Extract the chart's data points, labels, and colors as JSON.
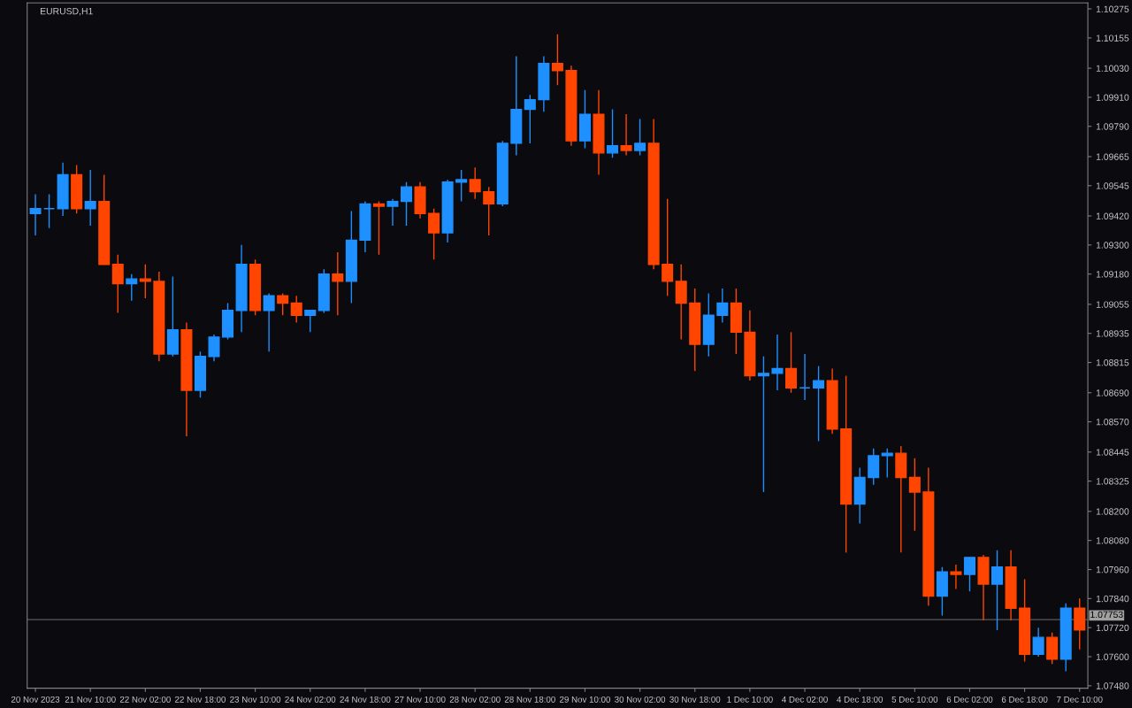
{
  "chart_data": {
    "type": "candlestick",
    "title": "EURUSD,H1",
    "categories": [
      "20 Nov 2023",
      null,
      null,
      null,
      "21 Nov 10:00",
      null,
      null,
      null,
      "22 Nov 02:00",
      null,
      null,
      null,
      "22 Nov 18:00",
      null,
      null,
      null,
      "23 Nov 10:00",
      null,
      null,
      null,
      "24 Nov 02:00",
      null,
      null,
      null,
      "24 Nov 18:00",
      null,
      null,
      null,
      "27 Nov 10:00",
      null,
      null,
      null,
      "28 Nov 02:00",
      null,
      null,
      null,
      "28 Nov 18:00",
      null,
      null,
      null,
      "29 Nov 10:00",
      null,
      null,
      null,
      "30 Nov 02:00",
      null,
      null,
      null,
      "30 Nov 18:00",
      null,
      null,
      null,
      "1 Dec 10:00",
      null,
      null,
      null,
      "4 Dec 02:00",
      null,
      null,
      null,
      "4 Dec 18:00",
      null,
      null,
      null,
      "5 Dec 10:00",
      null,
      null,
      null,
      "6 Dec 02:00",
      null,
      null,
      null,
      "6 Dec 18:00",
      null,
      null,
      null,
      "7 Dec 10:00"
    ],
    "ohlc": [
      [
        1.0943,
        1.0951,
        1.0934,
        1.0945
      ],
      [
        1.0945,
        1.0951,
        1.0937,
        1.0945
      ],
      [
        1.0945,
        1.0964,
        1.0942,
        1.0959
      ],
      [
        1.0959,
        1.0963,
        1.0943,
        1.0945
      ],
      [
        1.0945,
        1.0961,
        1.0938,
        1.0948
      ],
      [
        1.0948,
        1.0959,
        1.0922,
        1.0922
      ],
      [
        1.0922,
        1.0926,
        1.0902,
        1.0914
      ],
      [
        1.0914,
        1.0918,
        1.0907,
        1.0916
      ],
      [
        1.0916,
        1.0922,
        1.0908,
        1.0915
      ],
      [
        1.0915,
        1.0919,
        1.0882,
        1.0885
      ],
      [
        1.0885,
        1.0917,
        1.0884,
        1.0895
      ],
      [
        1.0895,
        1.0898,
        1.0851,
        1.087
      ],
      [
        1.087,
        1.0886,
        1.0867,
        1.0884
      ],
      [
        1.0884,
        1.0893,
        1.0882,
        1.0892
      ],
      [
        1.0892,
        1.0906,
        1.0891,
        1.0903
      ],
      [
        1.0903,
        1.093,
        1.0894,
        1.0922
      ],
      [
        1.0922,
        1.0924,
        1.0901,
        1.0903
      ],
      [
        1.0903,
        1.091,
        1.0886,
        1.0909
      ],
      [
        1.0909,
        1.091,
        1.0901,
        1.0906
      ],
      [
        1.0906,
        1.0909,
        1.0898,
        1.0901
      ],
      [
        1.0901,
        1.0903,
        1.0894,
        1.0903
      ],
      [
        1.0903,
        1.092,
        1.0902,
        1.0918
      ],
      [
        1.0918,
        1.0927,
        1.0901,
        1.0915
      ],
      [
        1.0915,
        1.0944,
        1.0906,
        1.0932
      ],
      [
        1.0932,
        1.0948,
        1.0927,
        1.0947
      ],
      [
        1.0947,
        1.0948,
        1.0926,
        1.0946
      ],
      [
        1.0946,
        1.0949,
        1.0938,
        1.0948
      ],
      [
        1.0948,
        1.0956,
        1.0938,
        1.0954
      ],
      [
        1.0954,
        1.0956,
        1.0941,
        1.0943
      ],
      [
        1.0943,
        1.0945,
        1.0924,
        1.0935
      ],
      [
        1.0935,
        1.0957,
        1.0931,
        1.0956
      ],
      [
        1.0956,
        1.0961,
        1.0948,
        1.0957
      ],
      [
        1.0957,
        1.0962,
        1.0949,
        1.0952
      ],
      [
        1.0952,
        1.0954,
        1.0934,
        1.0947
      ],
      [
        1.0947,
        1.0973,
        1.0946,
        1.0972
      ],
      [
        1.0972,
        1.1008,
        1.0967,
        1.0986
      ],
      [
        1.0986,
        1.0992,
        1.0972,
        1.099
      ],
      [
        1.099,
        1.1008,
        1.0985,
        1.1005
      ],
      [
        1.1005,
        1.1017,
        1.0996,
        1.1002
      ],
      [
        1.1002,
        1.1004,
        1.0971,
        1.0973
      ],
      [
        1.0973,
        1.0994,
        1.097,
        1.0984
      ],
      [
        1.0984,
        1.0994,
        1.0959,
        1.0968
      ],
      [
        1.0968,
        1.0986,
        1.0966,
        1.0971
      ],
      [
        1.0971,
        1.0984,
        1.0967,
        1.0969
      ],
      [
        1.0969,
        1.0982,
        1.0967,
        1.0972
      ],
      [
        1.0972,
        1.0982,
        1.092,
        1.0922
      ],
      [
        1.0922,
        1.0949,
        1.0909,
        1.0915
      ],
      [
        1.0915,
        1.0922,
        1.0891,
        1.0906
      ],
      [
        1.0906,
        1.0912,
        1.0878,
        1.0889
      ],
      [
        1.0889,
        1.091,
        1.0884,
        1.0901
      ],
      [
        1.0901,
        1.0912,
        1.0898,
        1.0906
      ],
      [
        1.0906,
        1.0912,
        1.0885,
        1.0894
      ],
      [
        1.0894,
        1.0903,
        1.0874,
        1.0876
      ],
      [
        1.0876,
        1.0884,
        1.0828,
        1.0877
      ],
      [
        1.0877,
        1.0893,
        1.087,
        1.0879
      ],
      [
        1.0879,
        1.0894,
        1.0869,
        1.0871
      ],
      [
        1.0871,
        1.0885,
        1.0866,
        1.0871
      ],
      [
        1.0871,
        1.088,
        1.0849,
        1.0874
      ],
      [
        1.0874,
        1.0879,
        1.0852,
        1.0854
      ],
      [
        1.0854,
        1.0876,
        1.0803,
        1.0823
      ],
      [
        1.0823,
        1.0838,
        1.0815,
        1.0834
      ],
      [
        1.0834,
        1.0846,
        1.0831,
        1.0843
      ],
      [
        1.0843,
        1.0846,
        1.0834,
        1.0844
      ],
      [
        1.0844,
        1.0847,
        1.0803,
        1.0834
      ],
      [
        1.0834,
        1.0842,
        1.0812,
        1.0828
      ],
      [
        1.0828,
        1.0838,
        1.0781,
        1.0785
      ],
      [
        1.0785,
        1.0797,
        1.0777,
        1.0795
      ],
      [
        1.0795,
        1.0798,
        1.0788,
        1.0794
      ],
      [
        1.0794,
        1.0801,
        1.0787,
        1.0801
      ],
      [
        1.0801,
        1.0802,
        1.0775,
        1.079
      ],
      [
        1.079,
        1.0804,
        1.0771,
        1.0797
      ],
      [
        1.0797,
        1.0804,
        1.0775,
        1.078
      ],
      [
        1.078,
        1.0792,
        1.0758,
        1.0761
      ],
      [
        1.0761,
        1.0772,
        1.076,
        1.0768
      ],
      [
        1.0768,
        1.077,
        1.0757,
        1.0759
      ],
      [
        1.0759,
        1.0782,
        1.0754,
        1.078
      ],
      [
        1.078,
        1.0784,
        1.0763,
        1.0771
      ]
    ],
    "colors": [
      "#1e90ff",
      "#1e90ff",
      "#1e90ff",
      "#ff4500",
      "#1e90ff",
      "#ff4500",
      "#ff4500",
      "#1e90ff",
      "#ff4500",
      "#ff4500",
      "#1e90ff",
      "#ff4500",
      "#1e90ff",
      "#1e90ff",
      "#1e90ff",
      "#1e90ff",
      "#ff4500",
      "#1e90ff",
      "#ff4500",
      "#ff4500",
      "#1e90ff",
      "#1e90ff",
      "#ff4500",
      "#1e90ff",
      "#1e90ff",
      "#ff4500",
      "#1e90ff",
      "#1e90ff",
      "#ff4500",
      "#ff4500",
      "#1e90ff",
      "#1e90ff",
      "#ff4500",
      "#ff4500",
      "#1e90ff",
      "#1e90ff",
      "#1e90ff",
      "#1e90ff",
      "#ff4500",
      "#ff4500",
      "#1e90ff",
      "#ff4500",
      "#1e90ff",
      "#ff4500",
      "#1e90ff",
      "#ff4500",
      "#ff4500",
      "#ff4500",
      "#ff4500",
      "#1e90ff",
      "#1e90ff",
      "#ff4500",
      "#ff4500",
      "#1e90ff",
      "#1e90ff",
      "#ff4500",
      "#1e90ff",
      "#1e90ff",
      "#ff4500",
      "#ff4500",
      "#1e90ff",
      "#1e90ff",
      "#1e90ff",
      "#ff4500",
      "#ff4500",
      "#ff4500",
      "#1e90ff",
      "#ff4500",
      "#1e90ff",
      "#ff4500",
      "#1e90ff",
      "#ff4500",
      "#ff4500",
      "#1e90ff",
      "#ff4500",
      "#1e90ff",
      "#ff4500"
    ],
    "ylim": [
      1.0747,
      1.103
    ],
    "yticks": [
      {
        "value": 1.0748,
        "label": "1.07480"
      },
      {
        "value": 1.076,
        "label": "1.07600"
      },
      {
        "value": 1.0772,
        "label": "1.07720"
      },
      {
        "value": 1.0784,
        "label": "1.07840"
      },
      {
        "value": 1.0796,
        "label": "1.07960"
      },
      {
        "value": 1.0808,
        "label": "1.08080"
      },
      {
        "value": 1.082,
        "label": "1.08200"
      },
      {
        "value": 1.08325,
        "label": "1.08325"
      },
      {
        "value": 1.08445,
        "label": "1.08445"
      },
      {
        "value": 1.0857,
        "label": "1.08570"
      },
      {
        "value": 1.0869,
        "label": "1.08690"
      },
      {
        "value": 1.08815,
        "label": "1.08815"
      },
      {
        "value": 1.08935,
        "label": "1.08935"
      },
      {
        "value": 1.09055,
        "label": "1.09055"
      },
      {
        "value": 1.0918,
        "label": "1.09180"
      },
      {
        "value": 1.093,
        "label": "1.09300"
      },
      {
        "value": 1.0942,
        "label": "1.09420"
      },
      {
        "value": 1.09545,
        "label": "1.09545"
      },
      {
        "value": 1.09665,
        "label": "1.09665"
      },
      {
        "value": 1.0979,
        "label": "1.09790"
      },
      {
        "value": 1.0991,
        "label": "1.09910"
      },
      {
        "value": 1.1003,
        "label": "1.10030"
      },
      {
        "value": 1.10155,
        "label": "1.10155"
      },
      {
        "value": 1.10275,
        "label": "1.10275"
      }
    ],
    "ref_lines": [
      {
        "axis": "y",
        "value": 1.07753,
        "label": "1.07753",
        "color": "#5a5a5a"
      }
    ]
  }
}
